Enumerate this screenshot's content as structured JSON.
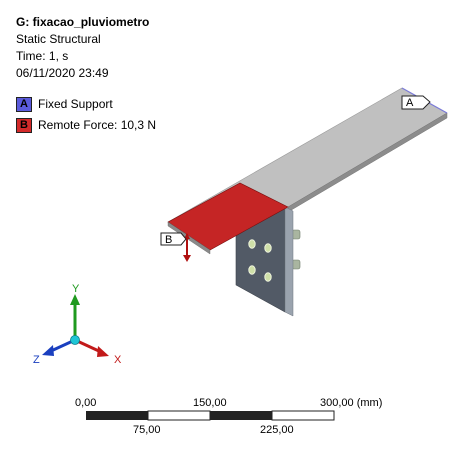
{
  "header": {
    "title": "G: fixacao_pluviometro",
    "analysis_type": "Static Structural",
    "time": "Time: 1, s",
    "date": "06/11/2020 23:49"
  },
  "legend": [
    {
      "key": "A",
      "label": "Fixed Support",
      "color": "#5b5bdc"
    },
    {
      "key": "B",
      "label": "Remote Force: 10,3 N",
      "color": "#d42a2a"
    }
  ],
  "callouts": {
    "fixed_support": "A",
    "remote_force": "B"
  },
  "triad": {
    "x": "X",
    "y": "Y",
    "z": "Z"
  },
  "scale_bar": {
    "top_labels": [
      "0,00",
      "150,00",
      "300,00 (mm)"
    ],
    "bottom_labels": [
      "75,00",
      "225,00"
    ]
  }
}
